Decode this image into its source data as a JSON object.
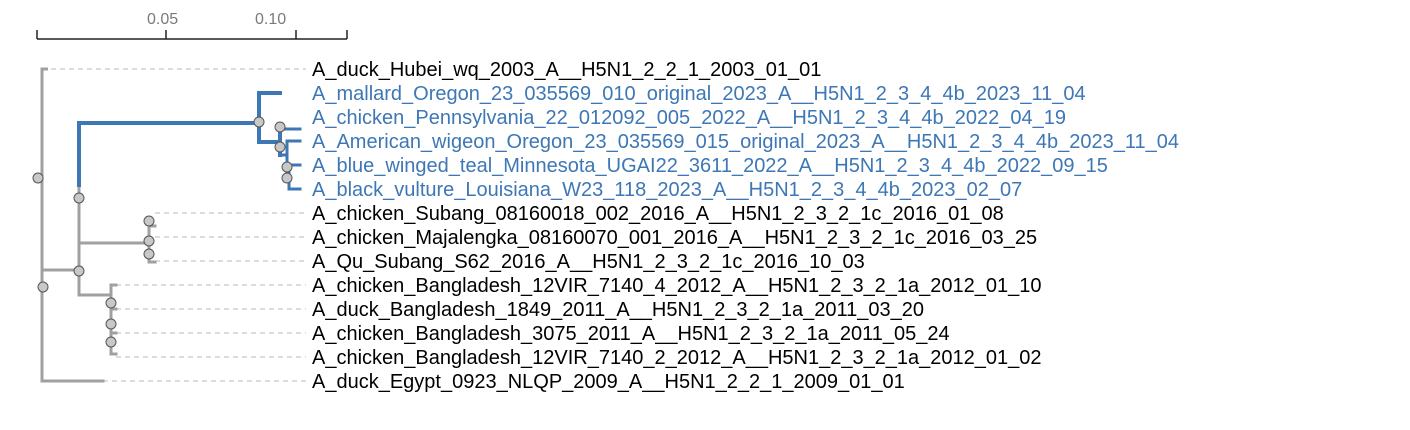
{
  "scale_bar": {
    "ticks": [
      "0.05",
      "0.10"
    ]
  },
  "colors": {
    "default_branch": "#a0a0a0",
    "highlight_branch": "#3d77b5",
    "default_label": "#000000",
    "highlight_label": "#3d77b5",
    "leader_line": "#c8c8c8",
    "node_fill": "#c8c8c8",
    "node_stroke": "#555555"
  },
  "leaves": [
    {
      "label": "A_duck_Hubei_wq_2003_A__H5N1_2_2_1_2003_01_01",
      "highlighted": false
    },
    {
      "label": "A_mallard_Oregon_23_035569_010_original_2023_A__H5N1_2_3_4_4b_2023_11_04",
      "highlighted": true
    },
    {
      "label": "A_chicken_Pennsylvania_22_012092_005_2022_A__H5N1_2_3_4_4b_2022_04_19",
      "highlighted": true
    },
    {
      "label": "A_American_wigeon_Oregon_23_035569_015_original_2023_A__H5N1_2_3_4_4b_2023_11_04",
      "highlighted": true
    },
    {
      "label": "A_blue_winged_teal_Minnesota_UGAI22_3611_2022_A__H5N1_2_3_4_4b_2022_09_15",
      "highlighted": true
    },
    {
      "label": "A_black_vulture_Louisiana_W23_118_2023_A__H5N1_2_3_4_4b_2023_02_07",
      "highlighted": true
    },
    {
      "label": "A_chicken_Subang_08160018_002_2016_A__H5N1_2_3_2_1c_2016_01_08",
      "highlighted": false
    },
    {
      "label": "A_chicken_Majalengka_08160070_001_2016_A__H5N1_2_3_2_1c_2016_03_25",
      "highlighted": false
    },
    {
      "label": "A_Qu_Subang_S62_2016_A__H5N1_2_3_2_1c_2016_10_03",
      "highlighted": false
    },
    {
      "label": "A_chicken_Bangladesh_12VIR_7140_4_2012_A__H5N1_2_3_2_1a_2012_01_10",
      "highlighted": false
    },
    {
      "label": "A_duck_Bangladesh_1849_2011_A__H5N1_2_3_2_1a_2011_03_20",
      "highlighted": false
    },
    {
      "label": "A_chicken_Bangladesh_3075_2011_A__H5N1_2_3_2_1a_2011_05_24",
      "highlighted": false
    },
    {
      "label": "A_chicken_Bangladesh_12VIR_7140_2_2012_A__H5N1_2_3_2_1a_2012_01_02",
      "highlighted": false
    },
    {
      "label": "A_duck_Egypt_0923_NLQP_2009_A__H5N1_2_2_1_2009_01_01",
      "highlighted": false
    }
  ]
}
